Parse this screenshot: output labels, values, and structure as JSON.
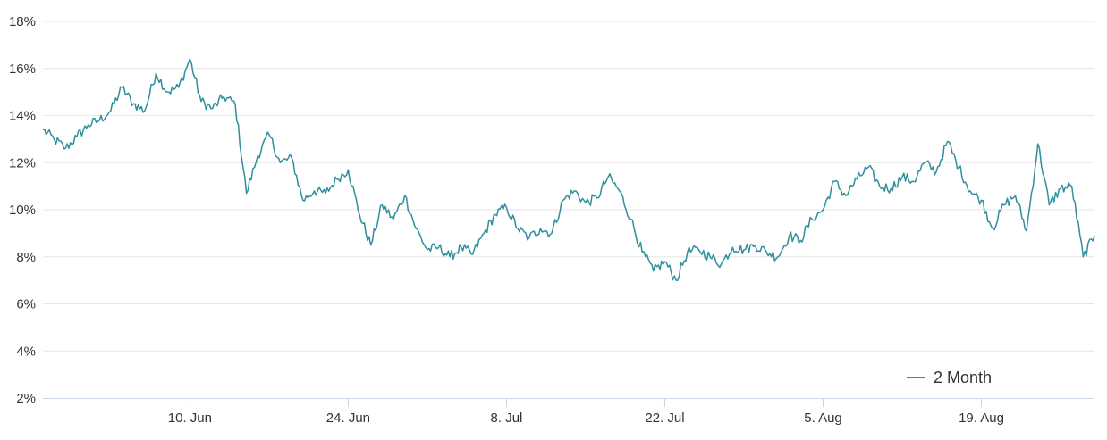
{
  "chart_data": {
    "type": "line",
    "title": "",
    "xlabel": "",
    "ylabel": "",
    "x_range": [
      "2024-05-28",
      "2024-08-29"
    ],
    "ylim": [
      2,
      18
    ],
    "y_ticks": [
      2,
      4,
      6,
      8,
      10,
      12,
      14,
      16,
      18
    ],
    "y_tick_labels": [
      "2%",
      "4%",
      "6%",
      "8%",
      "10%",
      "12%",
      "14%",
      "16%",
      "18%"
    ],
    "x_ticks": [
      "2024-06-10",
      "2024-06-24",
      "2024-07-08",
      "2024-07-22",
      "2024-08-05",
      "2024-08-19"
    ],
    "x_tick_labels": [
      "10. Jun",
      "24. Jun",
      "8. Jul",
      "22. Jul",
      "5. Aug",
      "19. Aug"
    ],
    "grid": true,
    "legend": "bottom-right",
    "series": [
      {
        "name": "2 Month",
        "color": "#2f8f9d",
        "points": [
          [
            "2024-05-28",
            13.4
          ],
          [
            "2024-05-29",
            13.0
          ],
          [
            "2024-05-30",
            12.6
          ],
          [
            "2024-05-31",
            13.1
          ],
          [
            "2024-06-01",
            13.6
          ],
          [
            "2024-06-02",
            13.8
          ],
          [
            "2024-06-03",
            14.2
          ],
          [
            "2024-06-04",
            15.2
          ],
          [
            "2024-06-05",
            14.5
          ],
          [
            "2024-06-06",
            14.2
          ],
          [
            "2024-06-07",
            15.8
          ],
          [
            "2024-06-08",
            15.0
          ],
          [
            "2024-06-09",
            15.2
          ],
          [
            "2024-06-10",
            16.4
          ],
          [
            "2024-06-11",
            14.6
          ],
          [
            "2024-06-12",
            14.3
          ],
          [
            "2024-06-13",
            14.8
          ],
          [
            "2024-06-14",
            14.5
          ],
          [
            "2024-06-15",
            10.7
          ],
          [
            "2024-06-16",
            12.3
          ],
          [
            "2024-06-17",
            13.2
          ],
          [
            "2024-06-18",
            12.0
          ],
          [
            "2024-06-19",
            12.2
          ],
          [
            "2024-06-20",
            10.4
          ],
          [
            "2024-06-21",
            10.8
          ],
          [
            "2024-06-22",
            10.7
          ],
          [
            "2024-06-23",
            11.3
          ],
          [
            "2024-06-24",
            11.7
          ],
          [
            "2024-06-25",
            9.8
          ],
          [
            "2024-06-26",
            8.5
          ],
          [
            "2024-06-27",
            10.2
          ],
          [
            "2024-06-28",
            9.6
          ],
          [
            "2024-06-29",
            10.6
          ],
          [
            "2024-06-30",
            9.2
          ],
          [
            "2024-07-01",
            8.3
          ],
          [
            "2024-07-02",
            8.4
          ],
          [
            "2024-07-03",
            8.0
          ],
          [
            "2024-07-04",
            8.4
          ],
          [
            "2024-07-05",
            8.1
          ],
          [
            "2024-07-06",
            9.0
          ],
          [
            "2024-07-07",
            9.8
          ],
          [
            "2024-07-08",
            10.1
          ],
          [
            "2024-07-09",
            9.2
          ],
          [
            "2024-07-10",
            8.8
          ],
          [
            "2024-07-11",
            9.2
          ],
          [
            "2024-07-12",
            9.0
          ],
          [
            "2024-07-13",
            10.4
          ],
          [
            "2024-07-14",
            10.8
          ],
          [
            "2024-07-15",
            10.3
          ],
          [
            "2024-07-16",
            10.5
          ],
          [
            "2024-07-17",
            11.4
          ],
          [
            "2024-07-18",
            10.8
          ],
          [
            "2024-07-19",
            9.6
          ],
          [
            "2024-07-20",
            8.2
          ],
          [
            "2024-07-21",
            7.4
          ],
          [
            "2024-07-22",
            7.8
          ],
          [
            "2024-07-23",
            7.0
          ],
          [
            "2024-07-24",
            8.2
          ],
          [
            "2024-07-25",
            8.3
          ],
          [
            "2024-07-26",
            8.0
          ],
          [
            "2024-07-27",
            7.7
          ],
          [
            "2024-07-28",
            8.4
          ],
          [
            "2024-07-29",
            8.3
          ],
          [
            "2024-07-30",
            8.5
          ],
          [
            "2024-07-31",
            8.2
          ],
          [
            "2024-08-01",
            8.0
          ],
          [
            "2024-08-02",
            8.9
          ],
          [
            "2024-08-03",
            8.7
          ],
          [
            "2024-08-04",
            9.6
          ],
          [
            "2024-08-05",
            10.0
          ],
          [
            "2024-08-06",
            11.2
          ],
          [
            "2024-08-07",
            10.6
          ],
          [
            "2024-08-08",
            11.3
          ],
          [
            "2024-08-09",
            11.8
          ],
          [
            "2024-08-10",
            11.0
          ],
          [
            "2024-08-11",
            10.9
          ],
          [
            "2024-08-12",
            11.4
          ],
          [
            "2024-08-13",
            11.2
          ],
          [
            "2024-08-14",
            12.0
          ],
          [
            "2024-08-15",
            11.6
          ],
          [
            "2024-08-16",
            12.9
          ],
          [
            "2024-08-17",
            11.8
          ],
          [
            "2024-08-18",
            10.8
          ],
          [
            "2024-08-19",
            10.4
          ],
          [
            "2024-08-20",
            9.2
          ],
          [
            "2024-08-21",
            10.2
          ],
          [
            "2024-08-22",
            10.6
          ],
          [
            "2024-08-23",
            9.1
          ],
          [
            "2024-08-24",
            12.8
          ],
          [
            "2024-08-25",
            10.2
          ],
          [
            "2024-08-26",
            10.9
          ],
          [
            "2024-08-27",
            11.0
          ],
          [
            "2024-08-28",
            8.0
          ],
          [
            "2024-08-29",
            8.9
          ]
        ]
      }
    ]
  }
}
